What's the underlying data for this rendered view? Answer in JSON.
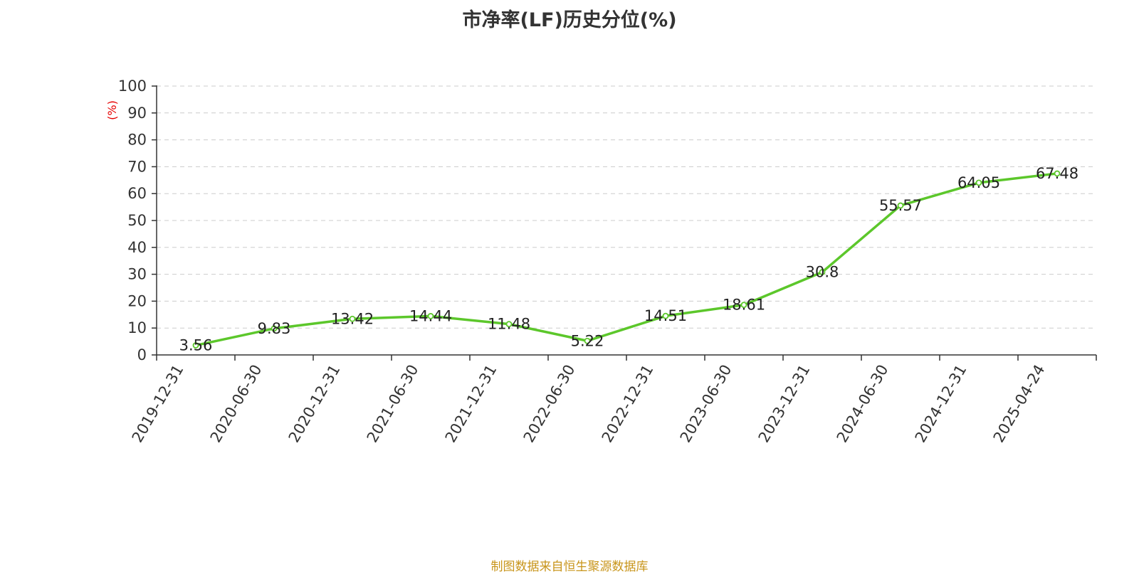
{
  "title": "市净率(LF)历史分位(%)",
  "source_note": "制图数据来自恒生聚源数据库",
  "chart_data": {
    "type": "line",
    "title": "市净率(LF)历史分位(%)",
    "ylabel": "(%)",
    "xlabel": "",
    "categories": [
      "2019-12-31",
      "2020-06-30",
      "2020-12-31",
      "2021-06-30",
      "2021-12-31",
      "2022-06-30",
      "2022-12-31",
      "2023-06-30",
      "2023-12-31",
      "2024-06-30",
      "2024-12-31",
      "2025-04-24"
    ],
    "values": [
      3.56,
      9.83,
      13.42,
      14.44,
      11.48,
      5.22,
      14.51,
      18.61,
      30.8,
      55.57,
      64.05,
      67.48
    ],
    "labels": [
      "3.56",
      "9.83",
      "13.42",
      "14.44",
      "11.48",
      "5.22",
      "14.51",
      "18.61",
      "30.8",
      "55.57",
      "64.05",
      "67.48"
    ],
    "ylim": [
      0,
      100
    ],
    "yticks": [
      "0",
      "10",
      "20",
      "30",
      "40",
      "50",
      "60",
      "70",
      "80",
      "90",
      "100"
    ],
    "grid": true,
    "legend": "none",
    "colors": {
      "line": "#5cc72b",
      "grid": "#cccccc",
      "axis": "#333333",
      "ylabel": "#e60000",
      "text": "#222222"
    }
  }
}
